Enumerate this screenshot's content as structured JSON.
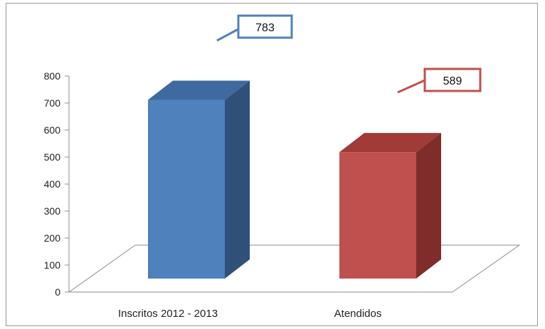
{
  "chart_data": {
    "type": "bar",
    "categories": [
      "Inscritos 2012 - 2013",
      "Atendidos"
    ],
    "values": [
      783,
      589
    ],
    "value_labels": [
      "783",
      "589"
    ],
    "ylim": [
      0,
      800
    ],
    "yticks": [
      "0",
      "100",
      "200",
      "300",
      "400",
      "500",
      "600",
      "700",
      "800"
    ],
    "title": "",
    "xlabel": "",
    "ylabel": "",
    "grid": false,
    "legend": "none",
    "style": "3d-column",
    "colors": {
      "bars": [
        "#4f81bd",
        "#c0504d"
      ],
      "bar_tops": [
        "#3f6aa0",
        "#a03b38"
      ],
      "bar_sides": [
        "#2f5079",
        "#7e2d2b"
      ],
      "callout_borders": [
        "#4f81bd",
        "#c0504d"
      ],
      "axis": "#8c8c8c"
    }
  }
}
